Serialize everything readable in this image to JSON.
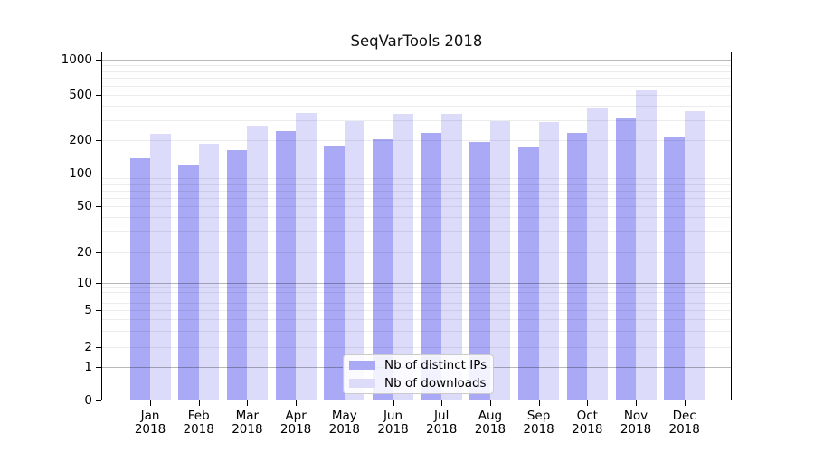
{
  "chart_data": {
    "type": "bar",
    "title": "SeqVarTools 2018",
    "categories": [
      "Jan",
      "Feb",
      "Mar",
      "Apr",
      "May",
      "Jun",
      "Jul",
      "Aug",
      "Sep",
      "Oct",
      "Nov",
      "Dec"
    ],
    "year_label": "2018",
    "series": [
      {
        "name": "Nb of distinct IPs",
        "color": "#a9a9f6",
        "values": [
          137,
          119,
          163,
          240,
          176,
          202,
          232,
          193,
          171,
          233,
          311,
          216
        ]
      },
      {
        "name": "Nb of downloads",
        "color": "#dcdcfa",
        "values": [
          228,
          185,
          268,
          345,
          294,
          339,
          343,
          293,
          289,
          380,
          547,
          362
        ]
      }
    ],
    "y_ticks": [
      1000,
      500,
      200,
      100,
      50,
      20,
      10,
      5,
      2,
      1,
      0
    ],
    "ylim": [
      0,
      1150
    ],
    "y_scale": "log-like with 0 baseline",
    "grid": "horizontal, minor + major",
    "legend_position": "lower center"
  }
}
